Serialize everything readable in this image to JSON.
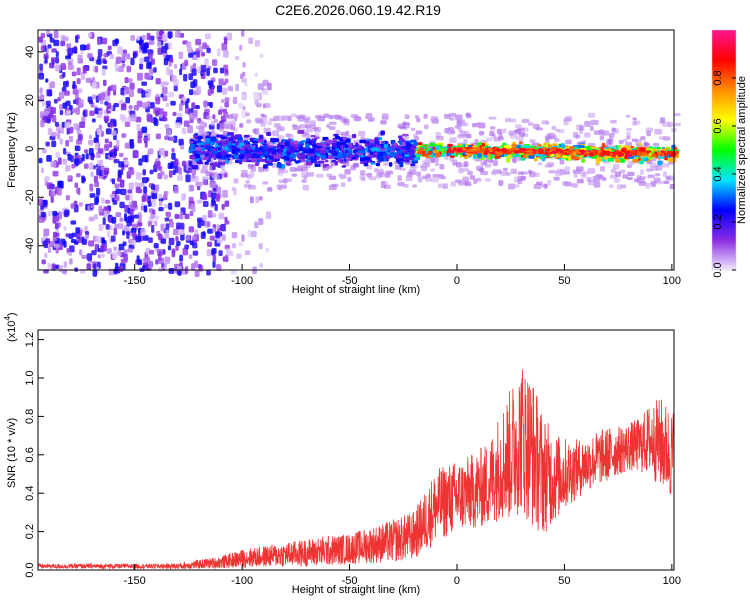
{
  "title": "C2E6.2026.060.19.42.R19",
  "chart_data": [
    {
      "type": "heatmap",
      "xlabel": "Height of straight line (km)",
      "ylabel": "Frequency (Hz)",
      "xlim": [
        -195,
        101
      ],
      "ylim": [
        -50,
        49
      ],
      "xticks": [
        -150,
        -100,
        -50,
        0,
        50,
        100
      ],
      "yticks": [
        -40,
        -20,
        0,
        20,
        40
      ],
      "colorbar": {
        "label": "Normalized spectral amplitude",
        "range": [
          0,
          1
        ],
        "ticks": [
          0.0,
          0.2,
          0.4,
          0.6,
          0.8
        ],
        "tick_labels": [
          "0.0",
          "0.2",
          "0.4",
          "0.6",
          "0.8"
        ],
        "colors": [
          "#f0e8ff",
          "#8a2be2",
          "#0000ff",
          "#00e5ff",
          "#00ff00",
          "#ffff00",
          "#ff8c00",
          "#ff0000",
          "#ff1493"
        ]
      },
      "description_regions": [
        {
          "x_range": [
            -195,
            -108
          ],
          "freq_range": [
            -50,
            49
          ],
          "level_range": [
            0.02,
            0.15
          ]
        },
        {
          "x_range": [
            -125,
            -20
          ],
          "freq_range": [
            -8,
            8
          ],
          "level_range": [
            0.1,
            0.35
          ]
        },
        {
          "x_range": [
            -20,
            101
          ],
          "freq_range": [
            -4,
            4
          ],
          "level_range": [
            0.3,
            0.9
          ]
        }
      ]
    },
    {
      "type": "line",
      "xlabel": "Height of straight line (km)",
      "ylabel": "SNR (10 * v/v)",
      "yscale_label": "(x10",
      "yscale_exp": "4",
      "yscale_close": ")",
      "xlim": [
        -195,
        101
      ],
      "ylim": [
        0,
        1.25
      ],
      "xticks": [
        -150,
        -100,
        -50,
        0,
        50,
        100
      ],
      "yticks": [
        0.0,
        0.2,
        0.4,
        0.6,
        0.8,
        1.0,
        1.2
      ],
      "ytick_labels": [
        "0.0",
        "0.2",
        "0.4",
        "0.6",
        "0.8",
        "1.0",
        "1.2"
      ],
      "series": [
        {
          "name": "SNR",
          "color": "#ee3333",
          "x": [
            -195,
            -180,
            -160,
            -140,
            -130,
            -120,
            -110,
            -100,
            -90,
            -80,
            -70,
            -60,
            -50,
            -40,
            -30,
            -20,
            -15,
            -10,
            -5,
            0,
            5,
            10,
            15,
            20,
            25,
            30,
            35,
            40,
            45,
            50,
            55,
            60,
            65,
            70,
            75,
            80,
            85,
            90,
            95,
            100
          ],
          "y": [
            0.02,
            0.02,
            0.02,
            0.02,
            0.02,
            0.03,
            0.04,
            0.06,
            0.07,
            0.08,
            0.09,
            0.1,
            0.11,
            0.13,
            0.15,
            0.18,
            0.25,
            0.33,
            0.36,
            0.38,
            0.4,
            0.42,
            0.45,
            0.55,
            0.6,
            0.7,
            0.62,
            0.5,
            0.48,
            0.5,
            0.52,
            0.55,
            0.58,
            0.6,
            0.62,
            0.64,
            0.65,
            0.68,
            0.66,
            0.6
          ],
          "noise": [
            0.008,
            0.008,
            0.008,
            0.008,
            0.01,
            0.015,
            0.02,
            0.03,
            0.035,
            0.04,
            0.045,
            0.05,
            0.05,
            0.06,
            0.07,
            0.08,
            0.1,
            0.12,
            0.12,
            0.12,
            0.12,
            0.13,
            0.14,
            0.18,
            0.22,
            0.25,
            0.25,
            0.2,
            0.15,
            0.12,
            0.1,
            0.09,
            0.09,
            0.09,
            0.08,
            0.08,
            0.09,
            0.12,
            0.15,
            0.15
          ]
        }
      ]
    }
  ]
}
